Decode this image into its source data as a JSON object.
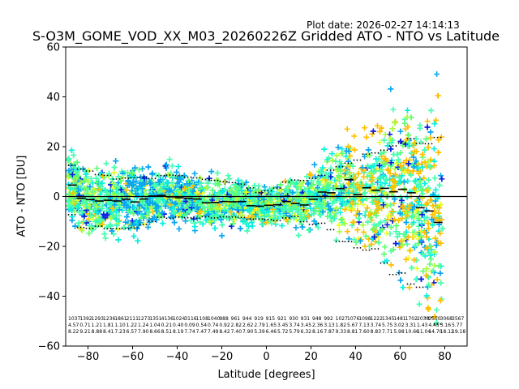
{
  "plot_date": "Plot date: 2026-02-27 14:14:13",
  "chart_data": {
    "type": "scatter",
    "title": "S-O3M_GOME_VOD_XX_M03_20260226Z Gridded ATO - NTO vs Latitude",
    "xlabel": "Latitude [degrees]",
    "ylabel": "ATO - NTO [DU]",
    "xlim": [
      -90,
      90
    ],
    "ylim": [
      -60,
      60
    ],
    "xticks": [
      -80,
      -60,
      -40,
      -20,
      0,
      20,
      40,
      60,
      80
    ],
    "yticks": [
      -60,
      -40,
      -20,
      0,
      20,
      40,
      60
    ],
    "zero_line": 0,
    "colors": [
      "#0b1fe0",
      "#0aa6f0",
      "#0bf0e0",
      "#44ffb0",
      "#5cff70",
      "#a8ff3c",
      "#e6ff26",
      "#ffc000"
    ],
    "bin_centers": [
      -87,
      -83,
      -79,
      -75,
      -71,
      -67,
      -63,
      -59,
      -55,
      -51,
      -47,
      -43,
      -39,
      -35,
      -31,
      -27,
      -23,
      -19,
      -15,
      -11,
      -7,
      -3,
      1,
      5,
      9,
      13,
      17,
      21,
      25,
      29,
      33,
      37,
      41,
      45,
      49,
      53,
      57,
      61,
      65,
      69,
      73,
      77
    ],
    "mean": [
      4.6,
      -0.7,
      -1.2,
      -1.8,
      -1.5,
      -1.8,
      -1.1,
      -2.2,
      -1.0,
      0.2,
      0.4,
      -0.1,
      -0.5,
      -0.7,
      -1.0,
      -2.5,
      -2.4,
      -2.0,
      -2.1,
      -2.0,
      -3.7,
      -3.9,
      -3.5,
      -3.3,
      -2.0,
      -2.8,
      -3.4,
      -1.1,
      1.8,
      1.5,
      3.2,
      6.8,
      0.8,
      3.5,
      2.5,
      3.3,
      1.9,
      2.9,
      1.5,
      -4.5,
      -5.8,
      -10.4
    ],
    "upper": [
      12.5,
      11.0,
      10.2,
      8.8,
      8.5,
      7.0,
      7.4,
      7.6,
      7.8,
      7.2,
      8.4,
      8.6,
      8.4,
      7.8,
      7.5,
      6.9,
      6.5,
      6.0,
      5.6,
      5.0,
      3.5,
      1.6,
      2.3,
      3.4,
      5.8,
      6.6,
      6.4,
      7.3,
      8.5,
      10.6,
      12.0,
      13.4,
      14.6,
      17.0,
      17.5,
      18.6,
      20.3,
      21.5,
      23.2,
      21.3,
      21.2,
      23.7
    ],
    "lower": [
      -7.3,
      -12.4,
      -12.8,
      -11.9,
      -12.9,
      -12.9,
      -12.9,
      -12.6,
      -11.2,
      -10.0,
      -8.3,
      -8.7,
      -8.2,
      -8.5,
      -8.7,
      -8.1,
      -8.6,
      -8.1,
      -8.2,
      -8.4,
      -9.1,
      -9.0,
      -9.2,
      -9.6,
      -8.6,
      -8.0,
      -10.1,
      -11.2,
      -10.7,
      -13.3,
      -18.0,
      -18.1,
      -20.6,
      -21.5,
      -21.0,
      -26.7,
      -31.3,
      -30.7,
      -35.1,
      -36.4,
      -48.5,
      -51.2
    ],
    "stats_rows": [
      [
        "1037",
        "1392",
        "1293",
        "1236",
        "1861",
        "2111",
        "1273",
        "1351",
        "4136",
        "1024",
        "3116",
        "1108",
        "1040",
        "988",
        "961",
        "944",
        "919",
        "915",
        "921",
        "930",
        "931",
        "948",
        "992",
        "1027",
        "1076",
        "1098",
        "1222",
        "1345",
        "1481",
        "1702",
        "2038",
        "2550",
        "3068",
        "3567"
      ],
      [
        "4.57",
        "0.71",
        "1.21",
        "1.81",
        "1.10",
        "1.22",
        "1.24",
        "1.04",
        "0.21",
        "0.40",
        "0.09",
        "0.54",
        "0.74",
        "0.92",
        "2.82",
        "2.62",
        "2.79",
        "1.65",
        "3.45",
        "3.74",
        "3.45",
        "2.36",
        "3.13",
        "1.82",
        "5.67",
        "7.13",
        "3.74",
        "5.75",
        "3.02",
        "3.31",
        "1.43",
        "4.45",
        "3.16",
        "5.77"
      ],
      [
        "8.22",
        "9.21",
        "8.88",
        "8.41",
        "7.23",
        "6.57",
        "7.90",
        "8.66",
        "8.51",
        "8.19",
        "7.74",
        "7.47",
        "7.49",
        "8.42",
        "7.40",
        "7.90",
        "5.39",
        "6.46",
        "5.72",
        "5.79",
        "6.32",
        "8.16",
        "7.87",
        "9.33",
        "8.81",
        "7.60",
        "8.83",
        "7.71",
        "5.98",
        "10.66",
        "11.04",
        "14.70",
        "18.12",
        "19.18"
      ]
    ]
  }
}
